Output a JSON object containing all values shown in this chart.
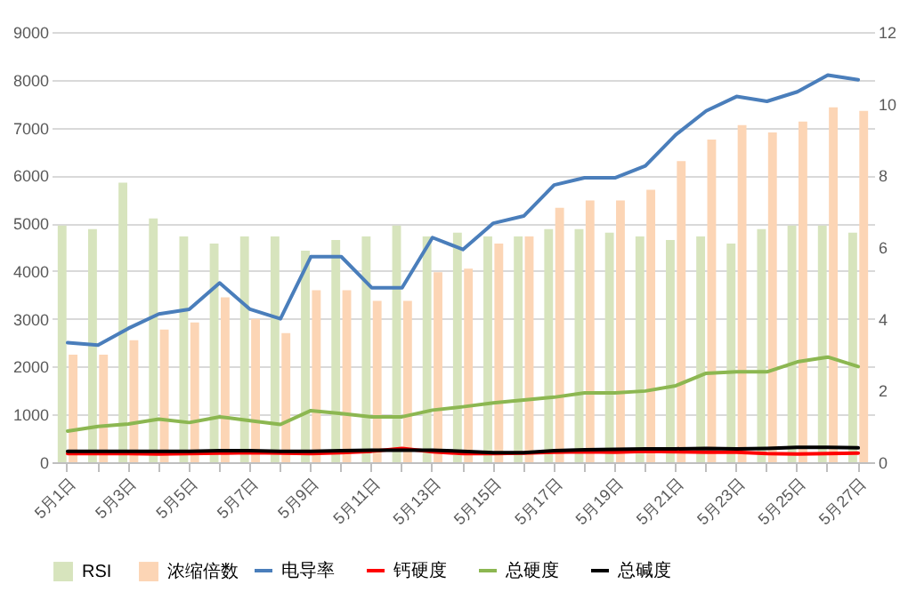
{
  "chart_data": {
    "type": "bar",
    "categories": [
      "5月1日",
      null,
      "5月3日",
      null,
      "5月5日",
      null,
      "5月7日",
      null,
      "5月9日",
      null,
      "5月11日",
      null,
      "5月13日",
      null,
      "5月15日",
      null,
      "5月17日",
      null,
      "5月19日",
      null,
      "5月21日",
      null,
      "5月23日",
      null,
      "5月25日",
      null,
      "5月27日"
    ],
    "series": [
      {
        "name": "RSI",
        "axis": "y2",
        "color": "#d7e4bd",
        "values": [
          6.6,
          6.5,
          7.8,
          6.8,
          6.3,
          6.1,
          6.3,
          6.3,
          5.9,
          6.2,
          6.3,
          6.6,
          6.3,
          6.4,
          6.3,
          6.3,
          6.5,
          6.5,
          6.4,
          6.3,
          6.2,
          6.3,
          6.1,
          6.5,
          6.6,
          6.6,
          6.4
        ]
      },
      {
        "name": "浓缩倍数",
        "axis": "y2",
        "color": "#fcd5b5",
        "values": [
          3.0,
          3.0,
          3.4,
          3.7,
          3.9,
          4.6,
          4.0,
          3.6,
          4.8,
          4.8,
          4.5,
          4.5,
          5.3,
          5.4,
          6.1,
          6.3,
          7.1,
          7.3,
          7.3,
          7.6,
          8.4,
          9.0,
          9.4,
          9.2,
          9.5,
          9.9,
          9.8
        ]
      },
      {
        "name": "电导率",
        "type": "line",
        "color": "#4a7ebb",
        "values": [
          2500,
          2450,
          2800,
          3100,
          3200,
          3750,
          3200,
          3000,
          4300,
          4300,
          3650,
          3650,
          4700,
          4450,
          5000,
          5150,
          5800,
          5950,
          5950,
          6200,
          6850,
          7350,
          7650,
          7550,
          7750,
          8100,
          8000
        ]
      },
      {
        "name": "钙硬度",
        "type": "line",
        "color": "#ff0000",
        "values": [
          180,
          180,
          180,
          170,
          180,
          190,
          200,
          190,
          180,
          200,
          230,
          290,
          220,
          180,
          180,
          190,
          210,
          220,
          210,
          230,
          220,
          210,
          210,
          180,
          170,
          180,
          190
        ]
      },
      {
        "name": "总硬度",
        "type": "line",
        "color": "#8cb751",
        "values": [
          650,
          750,
          800,
          900,
          830,
          950,
          870,
          790,
          1080,
          1020,
          950,
          950,
          1090,
          1160,
          1240,
          1300,
          1360,
          1450,
          1450,
          1490,
          1600,
          1860,
          1890,
          1890,
          2100,
          2200,
          2000
        ]
      },
      {
        "name": "总碱度",
        "type": "line",
        "color": "#000000",
        "values": [
          230,
          230,
          230,
          230,
          230,
          240,
          240,
          230,
          230,
          240,
          250,
          250,
          250,
          230,
          200,
          200,
          240,
          260,
          270,
          280,
          280,
          290,
          280,
          290,
          310,
          310,
          300
        ]
      }
    ],
    "ylim": [
      0,
      9000
    ],
    "yticks": [
      0,
      1000,
      2000,
      3000,
      4000,
      5000,
      6000,
      7000,
      8000,
      9000
    ],
    "y2lim": [
      0,
      12
    ],
    "y2ticks": [
      0,
      2,
      4,
      6,
      8,
      10,
      12
    ],
    "grid": "y",
    "legend": "bottom"
  }
}
